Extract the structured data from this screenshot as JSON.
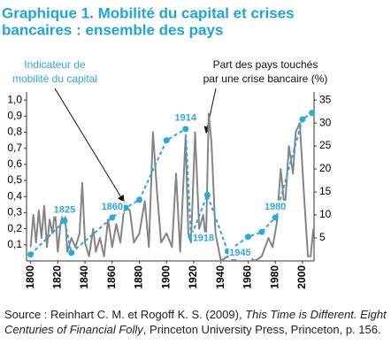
{
  "chart_data": {
    "type": "line",
    "title": [
      "Graphique 1. Mobilité du capital et crises",
      "bancaires : ensemble des pays"
    ],
    "annotations": {
      "left": [
        "Indicateur de",
        "mobilité du capital"
      ],
      "right": [
        "Part des pays touchés",
        "par une crise bancaire (%)"
      ]
    },
    "xlim": [
      1797,
      2008.5
    ],
    "xticks": [
      1800,
      1820,
      1840,
      1860,
      1880,
      1900,
      1920,
      1940,
      1960,
      1980,
      2000
    ],
    "ylim": [
      0,
      1.05
    ],
    "yticks": [
      {
        "value": 0.1,
        "label": "0,1"
      },
      {
        "value": 0.2,
        "label": "0,2"
      },
      {
        "value": 0.3,
        "label": "0,3"
      },
      {
        "value": 0.4,
        "label": "0,4"
      },
      {
        "value": 0.5,
        "label": "0,5"
      },
      {
        "value": 0.6,
        "label": "0,6"
      },
      {
        "value": 0.7,
        "label": "0,7"
      },
      {
        "value": 0.8,
        "label": "0,8"
      },
      {
        "value": 0.9,
        "label": "0,9"
      },
      {
        "value": 1.0,
        "label": "1,0"
      }
    ],
    "y2lim": [
      0,
      36.75
    ],
    "y2ticks": [
      5,
      10,
      15,
      20,
      25,
      30,
      35
    ],
    "series": [
      {
        "name": "Indicateur de mobilité du capital",
        "color": "#2aa9e0",
        "axis": "y",
        "x": [
          1800,
          1825,
          1830,
          1860,
          1870,
          1880,
          1900,
          1914,
          1918,
          1930,
          1945,
          1960,
          1970,
          1980,
          2000,
          2007
        ],
        "values": [
          0.04,
          0.25,
          0.05,
          0.27,
          0.33,
          0.38,
          0.75,
          0.82,
          0.15,
          0.41,
          0.06,
          0.15,
          0.18,
          0.27,
          0.88,
          0.92
        ],
        "point_labels": [
          null,
          "1825",
          null,
          "1860",
          null,
          null,
          null,
          "1914",
          "1918",
          null,
          "1945",
          null,
          null,
          "1980",
          null,
          null
        ]
      },
      {
        "name": "Part des pays touchés par une crise bancaire (%)",
        "color": "#858585",
        "axis": "y2",
        "x": [
          1800,
          1802,
          1804,
          1806,
          1808,
          1810,
          1812,
          1814,
          1816,
          1818,
          1820,
          1822,
          1825,
          1827,
          1830,
          1833,
          1836,
          1838,
          1840,
          1843,
          1846,
          1848,
          1851,
          1854,
          1857,
          1860,
          1863,
          1866,
          1869,
          1873,
          1876,
          1880,
          1884,
          1887,
          1890,
          1893,
          1896,
          1900,
          1904,
          1907,
          1910,
          1914,
          1916,
          1918,
          1921,
          1924,
          1927,
          1929,
          1931,
          1933,
          1936,
          1940,
          1945,
          1950,
          1955,
          1960,
          1965,
          1970,
          1975,
          1978,
          1981,
          1984,
          1987,
          1990,
          1993,
          1995,
          1998,
          2001,
          2004,
          2006,
          2008
        ],
        "values": [
          3,
          10,
          4,
          11,
          5,
          12,
          3,
          9,
          6,
          11,
          2,
          8,
          12,
          2,
          5,
          3,
          6,
          17,
          4,
          1,
          7,
          2,
          5,
          1,
          9,
          3,
          8,
          4,
          12,
          11,
          4,
          6,
          13,
          3,
          28,
          15,
          4,
          6,
          3,
          19,
          2,
          27,
          6,
          4,
          28,
          7,
          10,
          4,
          32,
          26,
          6,
          0,
          1,
          0,
          2,
          1,
          0,
          1,
          5,
          3,
          8,
          20,
          11,
          25,
          19,
          28,
          30,
          15,
          1,
          1,
          7
        ]
      }
    ],
    "source": [
      "Source : Reinhart C. M. et Rogoff K. S. (2009), ",
      "This Time is Different. Eight Centuries of Financial Folly",
      ", Princeton University Press, Princeton, p. 156."
    ]
  }
}
